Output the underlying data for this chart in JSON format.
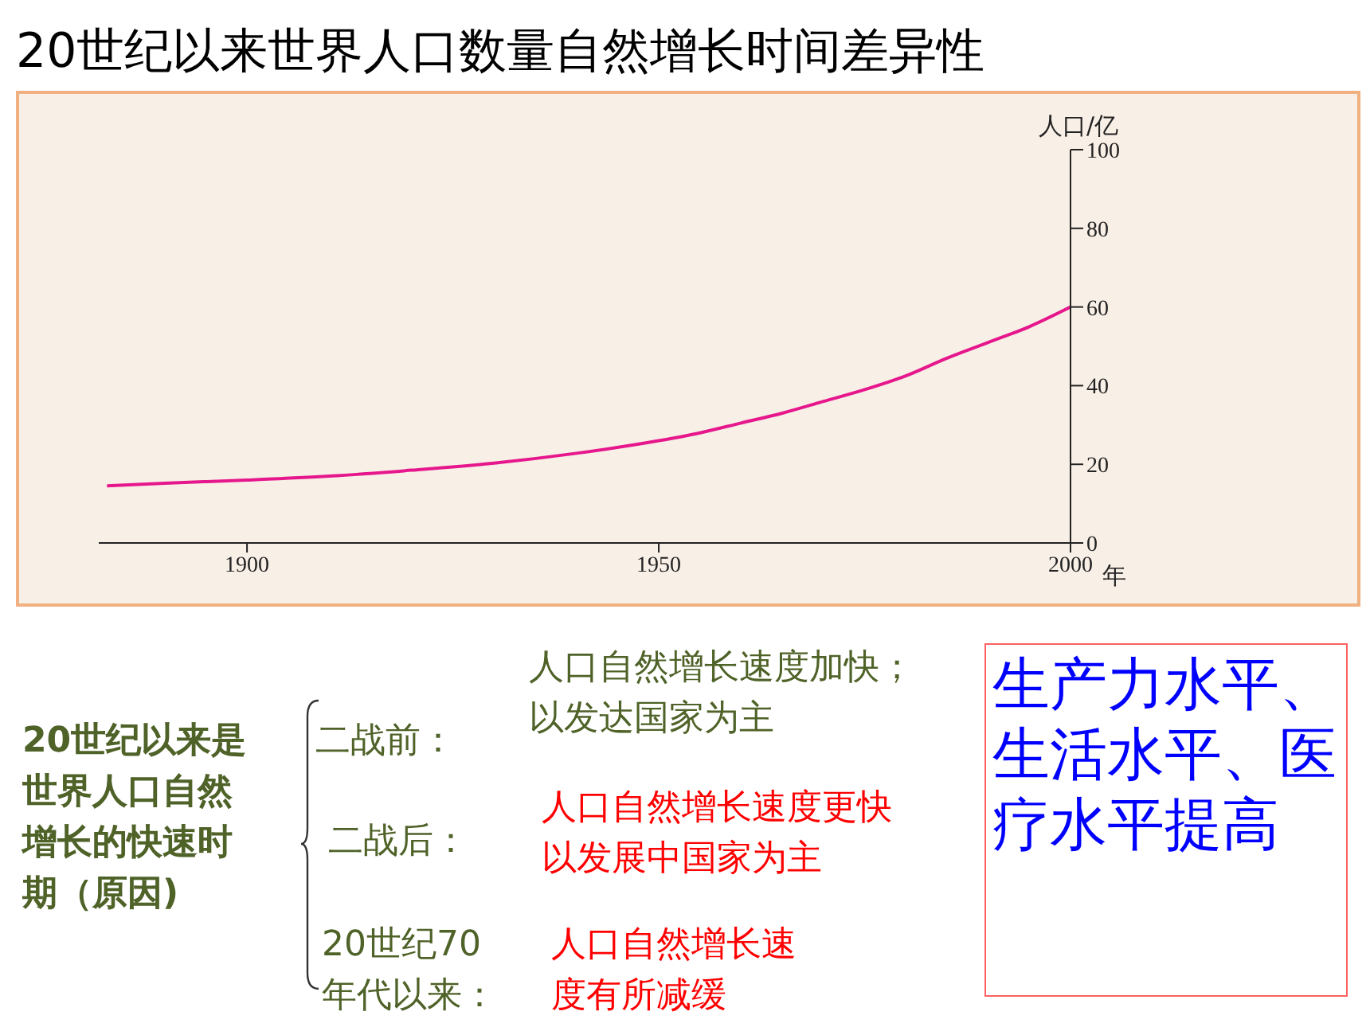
{
  "chart_data": {
    "type": "line",
    "title": "20世纪以来世界人口数量自然增长时间差异性",
    "xlabel": "年",
    "ylabel": "人口/亿",
    "x": [
      1883,
      1890,
      1900,
      1910,
      1920,
      1930,
      1940,
      1950,
      1955,
      1960,
      1965,
      1970,
      1975,
      1980,
      1985,
      1990,
      1995,
      2000
    ],
    "series": [
      {
        "color": "#e6178c",
        "values": [
          14.5,
          15.2,
          16,
          17,
          18.5,
          20.3,
          22.8,
          26,
          28,
          30.5,
          33,
          36,
          39,
          42.5,
          47,
          51,
          55,
          60
        ]
      }
    ],
    "xlim": [
      1882,
      2000
    ],
    "xticks": [
      1900,
      1950,
      2000
    ],
    "ylim": [
      0,
      100
    ],
    "yticks": [
      0,
      20,
      40,
      60,
      80,
      100
    ],
    "grid": false,
    "legend": false,
    "marker": "none",
    "line_style": "solid",
    "annotations": [
      "20世纪以来是世界人口自然增长的快速时期（原因)",
      "二战前：",
      "人口自然增长速度加快；以发达国家为主",
      "二战后：",
      "人口自然增长速度更快以发展中国家为主",
      "20世纪70年代以来：",
      "人口自然增长速度有所减缓",
      "生产力水平、生活水平、医疗水平提高"
    ]
  }
}
